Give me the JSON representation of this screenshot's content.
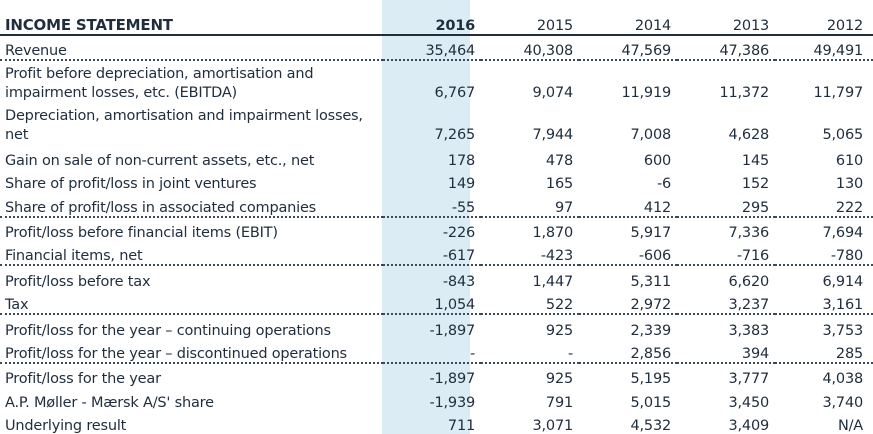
{
  "table": {
    "title": "INCOME STATEMENT",
    "years": [
      "2016",
      "2015",
      "2014",
      "2013",
      "2012"
    ],
    "rows": [
      {
        "label": "Revenue",
        "values": [
          "35,464",
          "40,308",
          "47,569",
          "47,386",
          "49,491"
        ]
      },
      {
        "label": "Profit before depreciation, amortisation and impairment losses, etc. (EBITDA)",
        "values": [
          "6,767",
          "9,074",
          "11,919",
          "11,372",
          "11,797"
        ]
      },
      {
        "label": "Depreciation, amortisation and impairment losses, net",
        "values": [
          "7,265",
          "7,944",
          "7,008",
          "4,628",
          "5,065"
        ]
      },
      {
        "label": "Gain on sale of non-current assets, etc., net",
        "values": [
          "178",
          "478",
          "600",
          "145",
          "610"
        ]
      },
      {
        "label": "Share of profit/loss in joint ventures",
        "values": [
          "149",
          "165",
          "-6",
          "152",
          "130"
        ]
      },
      {
        "label": "Share of profit/loss in associated companies",
        "values": [
          "-55",
          "97",
          "412",
          "295",
          "222"
        ]
      },
      {
        "label": "Profit/loss before financial items (EBIT)",
        "values": [
          "-226",
          "1,870",
          "5,917",
          "7,336",
          "7,694"
        ]
      },
      {
        "label": "Financial items, net",
        "values": [
          "-617",
          "-423",
          "-606",
          "-716",
          "-780"
        ]
      },
      {
        "label": "Profit/loss before tax",
        "values": [
          "-843",
          "1,447",
          "5,311",
          "6,620",
          "6,914"
        ]
      },
      {
        "label": "Tax",
        "values": [
          "1,054",
          "522",
          "2,972",
          "3,237",
          "3,161"
        ]
      },
      {
        "label": "Profit/loss for the year – continuing operations",
        "values": [
          "-1,897",
          "925",
          "2,339",
          "3,383",
          "3,753"
        ]
      },
      {
        "label": "Profit/loss for the year – discontinued operations",
        "values": [
          "-",
          "-",
          "2,856",
          "394",
          "285"
        ]
      },
      {
        "label": "Profit/loss for the year",
        "values": [
          "-1,897",
          "925",
          "5,195",
          "3,777",
          "4,038"
        ]
      },
      {
        "label": "A.P. Møller - Mærsk A/S' share",
        "values": [
          "-1,939",
          "791",
          "5,015",
          "3,450",
          "3,740"
        ]
      },
      {
        "label": "Underlying result",
        "values": [
          "711",
          "3,071",
          "4,532",
          "3,409",
          "N/A"
        ]
      }
    ]
  }
}
